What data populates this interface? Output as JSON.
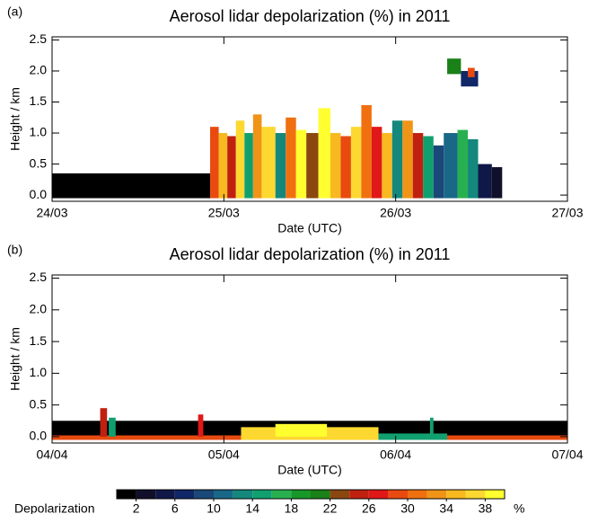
{
  "chart_data": [
    {
      "type": "heatmap",
      "panel": "(a)",
      "title": "Aerosol lidar depolarization (%) in 2011",
      "xlabel": "Date (UTC)",
      "ylabel": "Height / km",
      "xlim": [
        0,
        3
      ],
      "ylim": [
        -0.1,
        2.55
      ],
      "xticks": [
        {
          "value": 0,
          "label": "24/03"
        },
        {
          "value": 1,
          "label": "25/03"
        },
        {
          "value": 2,
          "label": "26/03"
        },
        {
          "value": 3,
          "label": "27/03"
        }
      ],
      "yticks": [
        {
          "value": 0,
          "label": "0.0"
        },
        0.5,
        {
          "value": 1,
          "label": "1.0"
        },
        1.5,
        {
          "value": 2,
          "label": "2.0"
        },
        2.5
      ],
      "cells": [
        {
          "x0": 0,
          "x1": 0.92,
          "y0": -0.05,
          "y1": 0.35,
          "value": 1
        },
        {
          "x0": 0.92,
          "x1": 0.97,
          "y0": -0.05,
          "y1": 1.1,
          "value": 28
        },
        {
          "x0": 0.97,
          "x1": 1.02,
          "y0": -0.05,
          "y1": 1.0,
          "value": 34
        },
        {
          "x0": 1.02,
          "x1": 1.07,
          "y0": -0.05,
          "y1": 0.95,
          "value": 24
        },
        {
          "x0": 1.07,
          "x1": 1.12,
          "y0": -0.05,
          "y1": 1.2,
          "value": 36
        },
        {
          "x0": 1.12,
          "x1": 1.17,
          "y0": -0.05,
          "y1": 1.0,
          "value": 14
        },
        {
          "x0": 1.17,
          "x1": 1.22,
          "y0": -0.05,
          "y1": 1.3,
          "value": 32
        },
        {
          "x0": 1.22,
          "x1": 1.3,
          "y0": -0.05,
          "y1": 1.1,
          "value": 36
        },
        {
          "x0": 1.3,
          "x1": 1.36,
          "y0": -0.05,
          "y1": 1.0,
          "value": 12
        },
        {
          "x0": 1.36,
          "x1": 1.42,
          "y0": -0.05,
          "y1": 1.25,
          "value": 30
        },
        {
          "x0": 1.42,
          "x1": 1.48,
          "y0": -0.05,
          "y1": 1.05,
          "value": 38
        },
        {
          "x0": 1.48,
          "x1": 1.55,
          "y0": -0.05,
          "y1": 1.0,
          "value": 22
        },
        {
          "x0": 1.55,
          "x1": 1.62,
          "y0": -0.05,
          "y1": 1.4,
          "value": 38
        },
        {
          "x0": 1.62,
          "x1": 1.68,
          "y0": -0.05,
          "y1": 1.0,
          "value": 34
        },
        {
          "x0": 1.68,
          "x1": 1.74,
          "y0": -0.05,
          "y1": 0.95,
          "value": 28
        },
        {
          "x0": 1.74,
          "x1": 1.8,
          "y0": -0.05,
          "y1": 1.1,
          "value": 36
        },
        {
          "x0": 1.8,
          "x1": 1.86,
          "y0": -0.05,
          "y1": 1.45,
          "value": 30
        },
        {
          "x0": 1.86,
          "x1": 1.92,
          "y0": -0.05,
          "y1": 1.1,
          "value": 26
        },
        {
          "x0": 1.92,
          "x1": 1.98,
          "y0": -0.05,
          "y1": 1.0,
          "value": 34
        },
        {
          "x0": 1.98,
          "x1": 2.04,
          "y0": -0.05,
          "y1": 1.2,
          "value": 12
        },
        {
          "x0": 2.04,
          "x1": 2.1,
          "y0": -0.05,
          "y1": 1.2,
          "value": 32
        },
        {
          "x0": 2.1,
          "x1": 2.16,
          "y0": -0.05,
          "y1": 1.0,
          "value": 24
        },
        {
          "x0": 2.16,
          "x1": 2.22,
          "y0": -0.05,
          "y1": 0.95,
          "value": 14
        },
        {
          "x0": 2.22,
          "x1": 2.28,
          "y0": -0.05,
          "y1": 0.8,
          "value": 8
        },
        {
          "x0": 2.28,
          "x1": 2.36,
          "y0": -0.05,
          "y1": 1.0,
          "value": 10
        },
        {
          "x0": 2.36,
          "x1": 2.42,
          "y0": -0.05,
          "y1": 1.05,
          "value": 16
        },
        {
          "x0": 2.42,
          "x1": 2.48,
          "y0": -0.05,
          "y1": 0.9,
          "value": 12
        },
        {
          "x0": 2.48,
          "x1": 2.56,
          "y0": -0.05,
          "y1": 0.5,
          "value": 4
        },
        {
          "x0": 2.56,
          "x1": 2.62,
          "y0": -0.05,
          "y1": 0.45,
          "value": 2
        },
        {
          "x0": 2.3,
          "x1": 2.38,
          "y0": 1.95,
          "y1": 2.2,
          "value": 20
        },
        {
          "x0": 2.38,
          "x1": 2.48,
          "y0": 1.75,
          "y1": 2.0,
          "value": 6
        },
        {
          "x0": 2.42,
          "x1": 2.46,
          "y0": 1.9,
          "y1": 2.05,
          "value": 28
        }
      ]
    },
    {
      "type": "heatmap",
      "panel": "(b)",
      "title": "Aerosol lidar depolarization (%) in 2011",
      "xlabel": "Date (UTC)",
      "ylabel": "Height / km",
      "xlim": [
        0,
        3
      ],
      "ylim": [
        -0.1,
        2.55
      ],
      "xticks": [
        {
          "value": 0,
          "label": "04/04"
        },
        {
          "value": 1,
          "label": "05/04"
        },
        {
          "value": 2,
          "label": "06/04"
        },
        {
          "value": 3,
          "label": "07/04"
        }
      ],
      "yticks": [
        {
          "value": 0,
          "label": "0.0"
        },
        0.5,
        {
          "value": 1,
          "label": "1.0"
        },
        1.5,
        {
          "value": 2,
          "label": "2.0"
        },
        2.5
      ],
      "cells": [
        {
          "x0": 0,
          "x1": 3,
          "y0": -0.05,
          "y1": 0.25,
          "value": 1
        },
        {
          "x0": 0,
          "x1": 3,
          "y0": -0.05,
          "y1": 0.02,
          "value": 28
        },
        {
          "x0": 1.1,
          "x1": 1.9,
          "y0": -0.05,
          "y1": 0.15,
          "value": 36
        },
        {
          "x0": 1.3,
          "x1": 1.6,
          "y0": 0,
          "y1": 0.2,
          "value": 38
        },
        {
          "x0": 1.9,
          "x1": 2.3,
          "y0": -0.05,
          "y1": 0.05,
          "value": 14
        },
        {
          "x0": 0.28,
          "x1": 0.32,
          "y0": 0,
          "y1": 0.45,
          "value": 24
        },
        {
          "x0": 0.33,
          "x1": 0.37,
          "y0": 0,
          "y1": 0.3,
          "value": 14
        },
        {
          "x0": 0.85,
          "x1": 0.88,
          "y0": 0,
          "y1": 0.35,
          "value": 26
        },
        {
          "x0": 2.2,
          "x1": 2.22,
          "y0": 0,
          "y1": 0.3,
          "value": 14
        }
      ]
    },
    {
      "type": "colorbar",
      "label": "Depolarization",
      "unit": "%",
      "bounds": [
        0,
        40
      ],
      "colors": [
        "#000000",
        "#10102a",
        "#101848",
        "#102868",
        "#1a4878",
        "#1a6888",
        "#14887c",
        "#10a070",
        "#28b050",
        "#189828",
        "#1a8018",
        "#8a4810",
        "#c02010",
        "#e01818",
        "#e84a10",
        "#f07010",
        "#f09418",
        "#f8b820",
        "#fcd830",
        "#ffff30"
      ],
      "ticks": [
        2,
        6,
        10,
        14,
        18,
        22,
        26,
        30,
        34,
        38
      ]
    }
  ]
}
